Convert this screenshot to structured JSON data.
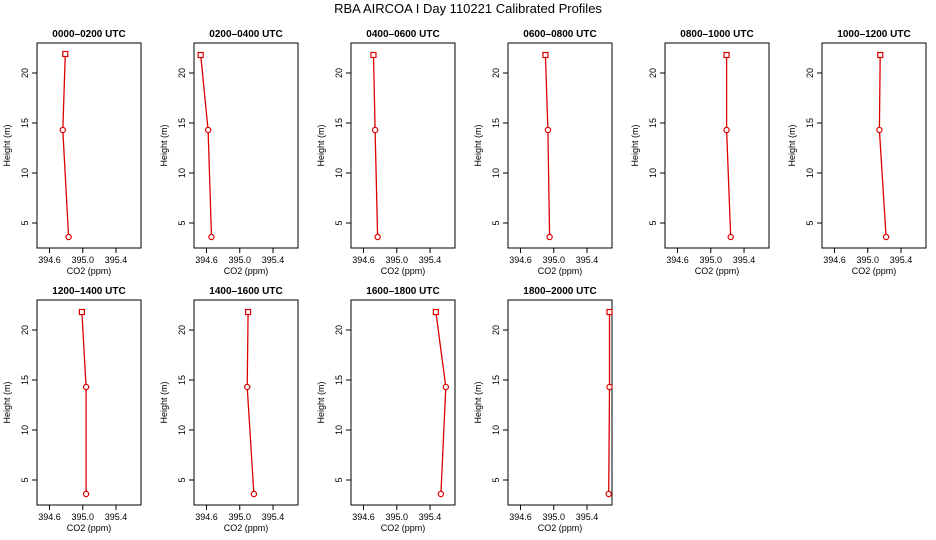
{
  "title": "RBA AIRCOA I  Day 110221  Calibrated Profiles",
  "series_color": "#dd0000",
  "chart_data": [
    {
      "type": "line",
      "title": "0000–0200 UTC",
      "xlabel": "CO2 (ppm)",
      "ylabel": "Height (m)",
      "xlim": [
        394.45,
        395.7
      ],
      "ylim": [
        2.5,
        23
      ],
      "xticks": [
        "394.6",
        "395.0",
        "395.4"
      ],
      "yticks": [
        "5",
        "10",
        "15",
        "20"
      ],
      "series": [
        {
          "points": [
            {
              "x": 394.83,
              "y": 3.6
            },
            {
              "x": 394.76,
              "y": 14.3
            },
            {
              "x": 394.79,
              "y": 21.9
            }
          ]
        }
      ]
    },
    {
      "type": "line",
      "title": "0200–0400 UTC",
      "xlabel": "CO2 (ppm)",
      "ylabel": "Height (m)",
      "xlim": [
        394.45,
        395.7
      ],
      "ylim": [
        2.5,
        23
      ],
      "xticks": [
        "394.6",
        "395.0",
        "395.4"
      ],
      "yticks": [
        "5",
        "10",
        "15",
        "20"
      ],
      "series": [
        {
          "points": [
            {
              "x": 394.66,
              "y": 3.6
            },
            {
              "x": 394.62,
              "y": 14.3
            },
            {
              "x": 394.53,
              "y": 21.8
            }
          ]
        }
      ]
    },
    {
      "type": "line",
      "title": "0400–0600 UTC",
      "xlabel": "CO2 (ppm)",
      "ylabel": "Height (m)",
      "xlim": [
        394.45,
        395.7
      ],
      "ylim": [
        2.5,
        23
      ],
      "xticks": [
        "394.6",
        "395.0",
        "395.4"
      ],
      "yticks": [
        "5",
        "10",
        "15",
        "20"
      ],
      "series": [
        {
          "points": [
            {
              "x": 394.77,
              "y": 3.6
            },
            {
              "x": 394.74,
              "y": 14.3
            },
            {
              "x": 394.72,
              "y": 21.8
            }
          ]
        }
      ]
    },
    {
      "type": "line",
      "title": "0600–0800 UTC",
      "xlabel": "CO2 (ppm)",
      "ylabel": "Height (m)",
      "xlim": [
        394.45,
        395.7
      ],
      "ylim": [
        2.5,
        23
      ],
      "xticks": [
        "394.6",
        "395.0",
        "395.4"
      ],
      "yticks": [
        "5",
        "10",
        "15",
        "20"
      ],
      "series": [
        {
          "points": [
            {
              "x": 394.95,
              "y": 3.6
            },
            {
              "x": 394.93,
              "y": 14.3
            },
            {
              "x": 394.9,
              "y": 21.8
            }
          ]
        }
      ]
    },
    {
      "type": "line",
      "title": "0800–1000 UTC",
      "xlabel": "CO2 (ppm)",
      "ylabel": "Height (m)",
      "xlim": [
        394.45,
        395.7
      ],
      "ylim": [
        2.5,
        23
      ],
      "xticks": [
        "394.6",
        "395.0",
        "395.4"
      ],
      "yticks": [
        "5",
        "10",
        "15",
        "20"
      ],
      "series": [
        {
          "points": [
            {
              "x": 395.24,
              "y": 3.6
            },
            {
              "x": 395.19,
              "y": 14.3
            },
            {
              "x": 395.19,
              "y": 21.8
            }
          ]
        }
      ]
    },
    {
      "type": "line",
      "title": "1000–1200 UTC",
      "xlabel": "CO2 (ppm)",
      "ylabel": "Height (m)",
      "xlim": [
        394.45,
        395.7
      ],
      "ylim": [
        2.5,
        23
      ],
      "xticks": [
        "394.6",
        "395.0",
        "395.4"
      ],
      "yticks": [
        "5",
        "10",
        "15",
        "20"
      ],
      "series": [
        {
          "points": [
            {
              "x": 395.22,
              "y": 3.6
            },
            {
              "x": 395.14,
              "y": 14.3
            },
            {
              "x": 395.15,
              "y": 21.8
            }
          ]
        }
      ]
    },
    {
      "type": "line",
      "title": "1200–1400 UTC",
      "xlabel": "CO2 (ppm)",
      "ylabel": "Height (m)",
      "xlim": [
        394.45,
        395.7
      ],
      "ylim": [
        2.5,
        23
      ],
      "xticks": [
        "394.6",
        "395.0",
        "395.4"
      ],
      "yticks": [
        "5",
        "10",
        "15",
        "20"
      ],
      "series": [
        {
          "points": [
            {
              "x": 395.04,
              "y": 3.6
            },
            {
              "x": 395.04,
              "y": 14.3
            },
            {
              "x": 394.99,
              "y": 21.8
            }
          ]
        }
      ]
    },
    {
      "type": "line",
      "title": "1400–1600 UTC",
      "xlabel": "CO2 (ppm)",
      "ylabel": "Height (m)",
      "xlim": [
        394.45,
        395.7
      ],
      "ylim": [
        2.5,
        23
      ],
      "xticks": [
        "394.6",
        "395.0",
        "395.4"
      ],
      "yticks": [
        "5",
        "10",
        "15",
        "20"
      ],
      "series": [
        {
          "points": [
            {
              "x": 395.17,
              "y": 3.6
            },
            {
              "x": 395.09,
              "y": 14.3
            },
            {
              "x": 395.1,
              "y": 21.8
            }
          ]
        }
      ]
    },
    {
      "type": "line",
      "title": "1600–1800 UTC",
      "xlabel": "CO2 (ppm)",
      "ylabel": "Height (m)",
      "xlim": [
        394.45,
        395.7
      ],
      "ylim": [
        2.5,
        23
      ],
      "xticks": [
        "394.6",
        "395.0",
        "395.4"
      ],
      "yticks": [
        "5",
        "10",
        "15",
        "20"
      ],
      "series": [
        {
          "points": [
            {
              "x": 395.53,
              "y": 3.6
            },
            {
              "x": 395.59,
              "y": 14.3
            },
            {
              "x": 395.47,
              "y": 21.8
            }
          ]
        }
      ]
    },
    {
      "type": "line",
      "title": "1800–2000 UTC",
      "xlabel": "CO2 (ppm)",
      "ylabel": "Height (m)",
      "xlim": [
        394.45,
        395.7
      ],
      "ylim": [
        2.5,
        23
      ],
      "xticks": [
        "394.6",
        "395.0",
        "395.4"
      ],
      "yticks": [
        "5",
        "10",
        "15",
        "20"
      ],
      "series": [
        {
          "points": [
            {
              "x": 395.66,
              "y": 3.6
            },
            {
              "x": 395.67,
              "y": 14.3
            },
            {
              "x": 395.67,
              "y": 21.8
            }
          ]
        }
      ]
    }
  ]
}
